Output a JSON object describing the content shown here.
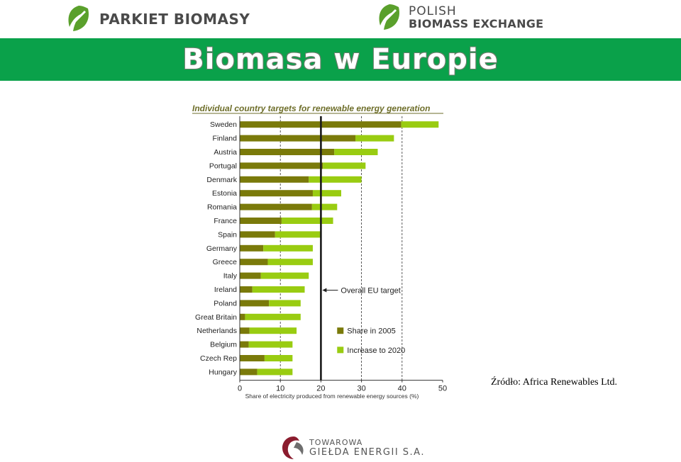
{
  "header": {
    "logo_left_text": "PARKIET BIOMASY",
    "logo_right_line1": "POLISH",
    "logo_right_line2": "BIOMASS EXCHANGE",
    "title": "Biomasa w Europie"
  },
  "source_note": "Źródło:  Africa Renewables Ltd.",
  "footer": {
    "line1": "TOWAROWA",
    "line2": "GIEŁDA ENERGII S.A."
  },
  "colors": {
    "banner": "#0aa14a",
    "share_2005": "#7a7a0a",
    "increase_2020": "#99cc11",
    "title_text": "#6e6e2a",
    "logo_green": "#5aa02c",
    "logo_red": "#8b1c2e"
  },
  "chart_data": {
    "type": "bar",
    "orientation": "horizontal",
    "stacked": true,
    "title": "Individual country targets for renewable energy generation",
    "xlabel": "Share of electricity produced from renewable energy sources (%)",
    "xlim": [
      0,
      50
    ],
    "xticks": [
      "0",
      "10",
      "20",
      "30",
      "40",
      "50"
    ],
    "gridlines": "dashed vertical at 10, 30, 40",
    "categories": [
      "Sweden",
      "Finland",
      "Austria",
      "Portugal",
      "Denmark",
      "Estonia",
      "Romania",
      "France",
      "Spain",
      "Germany",
      "Greece",
      "Italy",
      "Ireland",
      "Poland",
      "Great Britain",
      "Netherlands",
      "Belgium",
      "Czech Rep",
      "Hungary"
    ],
    "series": [
      {
        "name": "Share in 2005",
        "values": [
          39.8,
          28.5,
          23.3,
          20.5,
          17.0,
          18.0,
          17.8,
          10.3,
          8.7,
          5.8,
          6.9,
          5.2,
          3.1,
          7.2,
          1.3,
          2.4,
          2.2,
          6.1,
          4.3
        ]
      },
      {
        "name": "Increase to 2020",
        "values": [
          9.2,
          9.5,
          10.7,
          10.5,
          13.0,
          7.0,
          6.2,
          12.7,
          11.3,
          12.2,
          11.1,
          11.8,
          12.9,
          7.8,
          13.7,
          11.6,
          10.8,
          6.9,
          8.7
        ]
      }
    ],
    "eu_target": {
      "value": 20,
      "label": "Overall EU target"
    },
    "legend_position": "bottom-right"
  }
}
